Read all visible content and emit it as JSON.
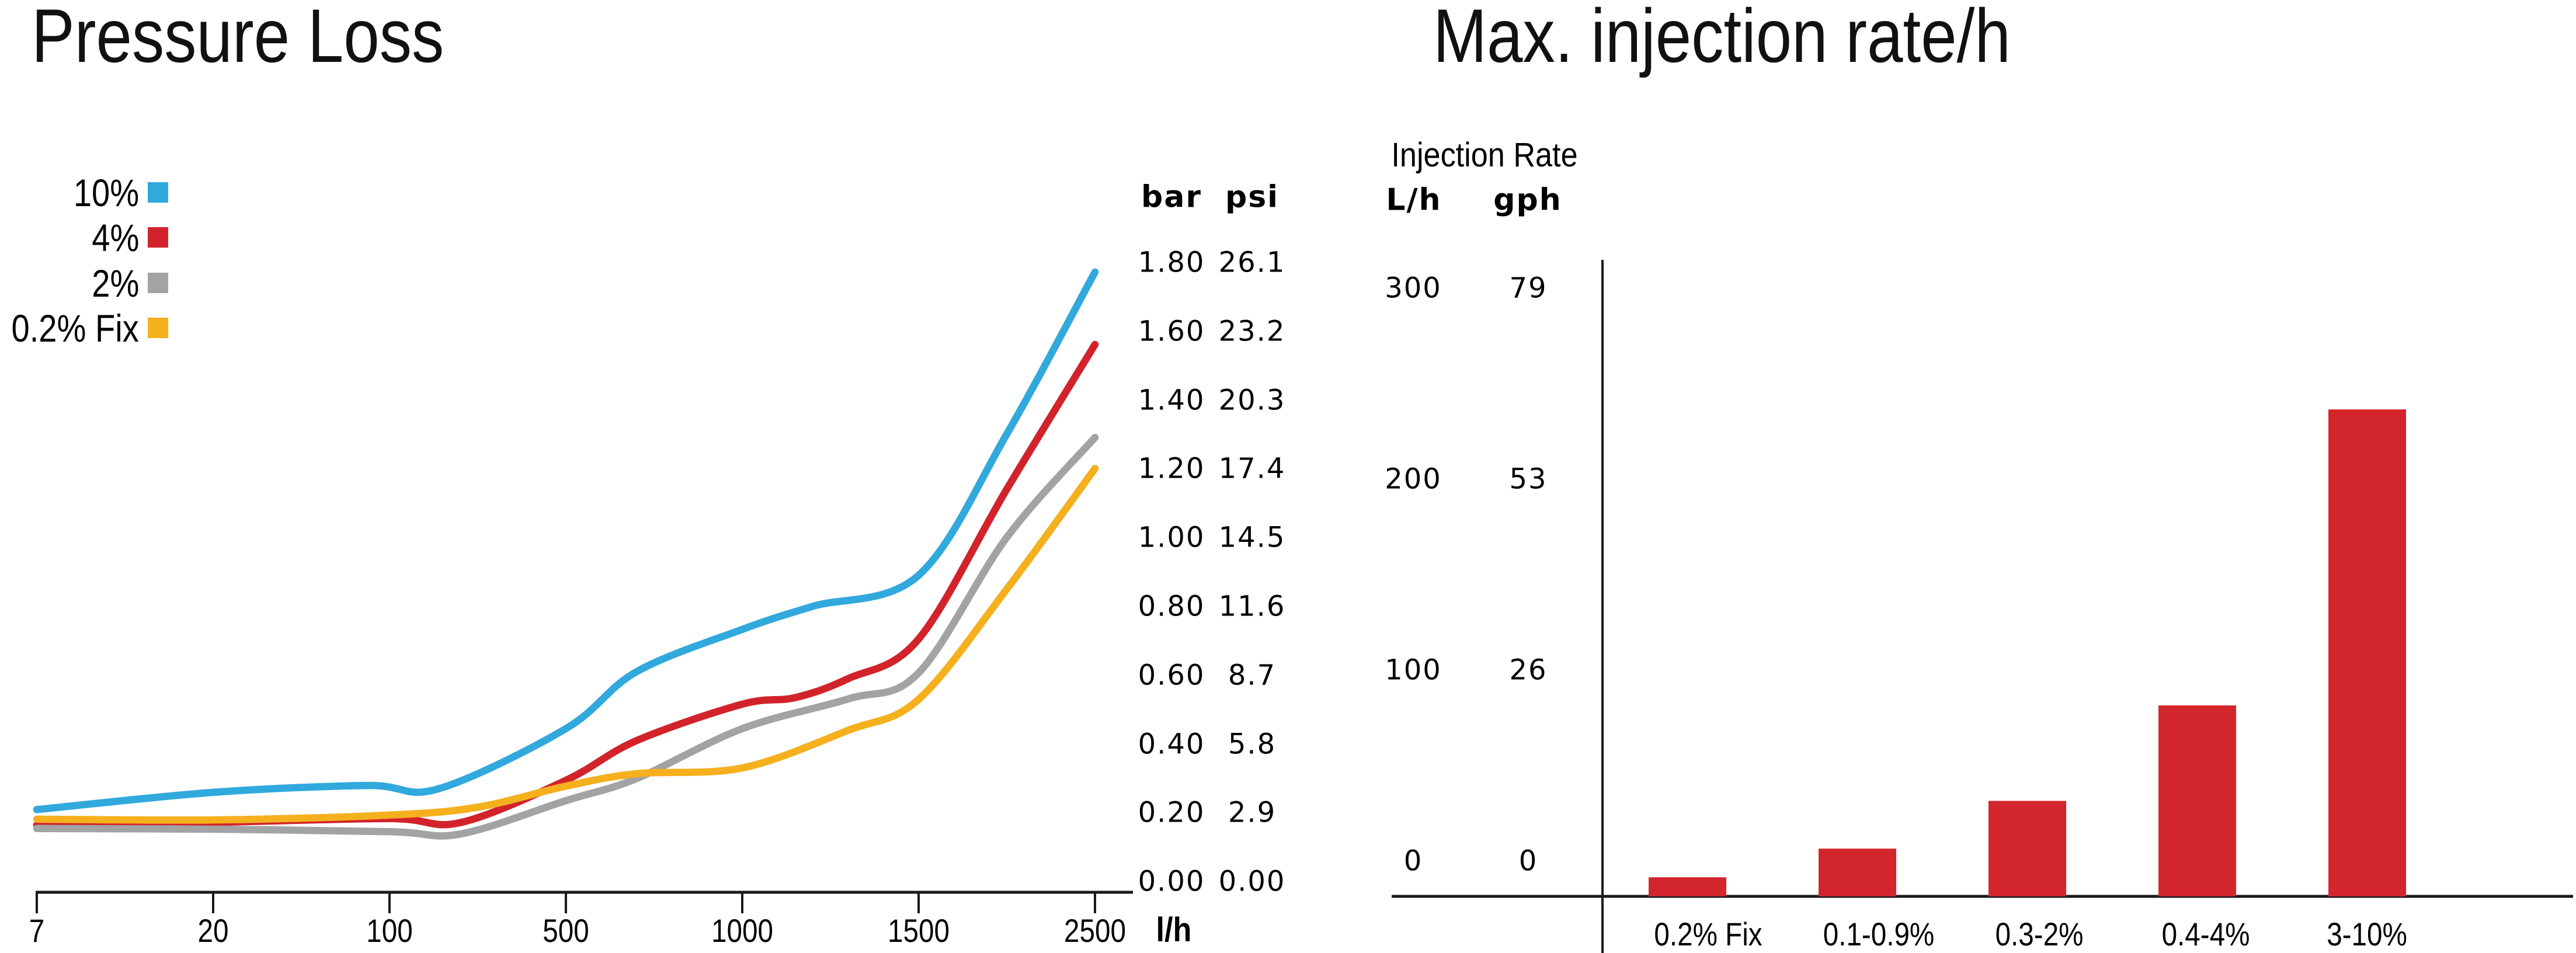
{
  "chart_data": [
    {
      "type": "line",
      "title": "Pressure Loss",
      "xlabel": "l/h",
      "x_ticks": [
        7,
        20,
        100,
        500,
        1000,
        1500,
        2500
      ],
      "y_headers": {
        "bar": "bar",
        "psi": "psi"
      },
      "bar_ticks": [
        "1.80",
        "1.60",
        "1.40",
        "1.20",
        "1.00",
        "0.80",
        "0.60",
        "0.40",
        "0.20",
        "0.00"
      ],
      "psi_ticks": [
        "26.1",
        "23.2",
        "20.3",
        "17.4",
        "14.5",
        "11.6",
        "8.7",
        "5.8",
        "2.9",
        "0.00"
      ],
      "ylim_bar": [
        0,
        1.9
      ],
      "legend_position": "top-left",
      "grid": false,
      "series": [
        {
          "name": "10%",
          "color": "#31A9DD",
          "points": [
            [
              7,
              0.24
            ],
            [
              20,
              0.29
            ],
            [
              90,
              0.31
            ],
            [
              210,
              0.3
            ],
            [
              500,
              0.475
            ],
            [
              700,
              0.64
            ],
            [
              1000,
              0.763
            ],
            [
              1200,
              0.83
            ],
            [
              1500,
              0.92
            ],
            [
              2000,
              1.33
            ],
            [
              2500,
              1.8
            ]
          ]
        },
        {
          "name": "4%",
          "color": "#D2232B",
          "points": [
            [
              7,
              0.195
            ],
            [
              20,
              0.203
            ],
            [
              100,
              0.214
            ],
            [
              260,
              0.202
            ],
            [
              500,
              0.325
            ],
            [
              700,
              0.44
            ],
            [
              1000,
              0.546
            ],
            [
              1150,
              0.565
            ],
            [
              1300,
              0.62
            ],
            [
              1500,
              0.735
            ],
            [
              2000,
              1.17
            ],
            [
              2500,
              1.59
            ]
          ]
        },
        {
          "name": "2%",
          "color": "#A2A3A5",
          "points": [
            [
              7,
              0.185
            ],
            [
              20,
              0.183
            ],
            [
              100,
              0.176
            ],
            [
              260,
              0.169
            ],
            [
              500,
              0.266
            ],
            [
              700,
              0.33
            ],
            [
              1000,
              0.475
            ],
            [
              1300,
              0.561
            ],
            [
              1500,
              0.637
            ],
            [
              2000,
              1.03
            ],
            [
              2500,
              1.32
            ]
          ]
        },
        {
          "name": "0.2% Fix",
          "color": "#F5B01E",
          "points": [
            [
              7,
              0.212
            ],
            [
              20,
              0.21
            ],
            [
              100,
              0.224
            ],
            [
              300,
              0.247
            ],
            [
              500,
              0.308
            ],
            [
              700,
              0.344
            ],
            [
              1000,
              0.361
            ],
            [
              1300,
              0.47
            ],
            [
              1500,
              0.56
            ],
            [
              2000,
              0.88
            ],
            [
              2500,
              1.23
            ]
          ]
        }
      ]
    },
    {
      "type": "bar",
      "title": "Max. injection rate/h",
      "y_header": "Injection Rate",
      "col_headers": {
        "lh": "L/h",
        "gph": "gph"
      },
      "y_rows": [
        {
          "lh": "300",
          "gph": "79"
        },
        {
          "lh": "200",
          "gph": "53"
        },
        {
          "lh": "100",
          "gph": "26"
        },
        {
          "lh": "0",
          "gph": "0"
        }
      ],
      "categories": [
        "0.2% Fix",
        "0.1-0.9%",
        "0.3-2%",
        "0.4-4%",
        "3-10%"
      ],
      "values_lh": [
        10,
        25,
        50,
        100,
        255
      ],
      "ylim_lh": [
        0,
        300
      ],
      "bar_color": "#D2262C",
      "grid": false
    }
  ]
}
